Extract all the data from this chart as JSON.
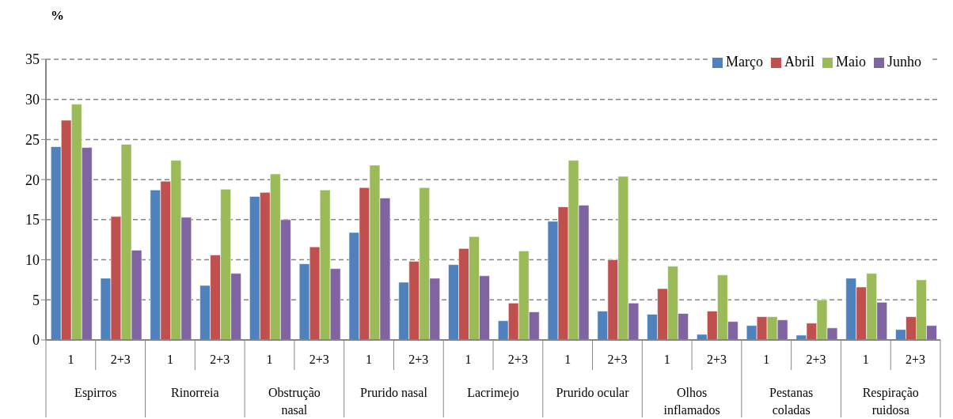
{
  "chart_data": {
    "type": "bar",
    "ylabel": "%",
    "categories": [
      "1",
      "2+3",
      "1",
      "2+3",
      "1",
      "2+3",
      "1",
      "2+3",
      "1",
      "2+3",
      "1",
      "2+3",
      "1",
      "2+3",
      "1",
      "2+3",
      "1",
      "2+3"
    ],
    "annotations": [
      "Espirros",
      "Rinorreia",
      "Obstrução nasal",
      "Prurido nasal",
      "Lacrimejo",
      "Prurido ocular",
      "Olhos inflamados",
      "Pestanas coladas",
      "Respiração ruidosa"
    ],
    "series": [
      {
        "name": "Março",
        "color": "#4f81bd",
        "values": [
          24.1,
          7.7,
          18.7,
          6.8,
          17.9,
          9.5,
          13.4,
          7.2,
          9.4,
          2.4,
          14.8,
          3.6,
          3.2,
          0.7,
          1.8,
          0.6,
          7.7,
          1.3
        ]
      },
      {
        "name": "Abril",
        "color": "#c0504d",
        "values": [
          27.4,
          15.4,
          19.8,
          10.6,
          18.4,
          11.6,
          19.0,
          9.8,
          11.4,
          4.6,
          16.6,
          10.0,
          6.4,
          3.6,
          2.9,
          2.1,
          6.6,
          2.9
        ]
      },
      {
        "name": "Maio",
        "color": "#9bbb59",
        "values": [
          29.4,
          24.4,
          22.4,
          18.8,
          20.7,
          18.7,
          21.8,
          19.0,
          12.9,
          11.1,
          22.4,
          20.4,
          9.2,
          8.1,
          2.9,
          5.0,
          8.3,
          7.5
        ]
      },
      {
        "name": "Junho",
        "color": "#8064a2",
        "values": [
          24.0,
          11.2,
          15.3,
          8.3,
          15.0,
          8.9,
          17.7,
          7.7,
          8.0,
          3.5,
          16.8,
          4.6,
          3.3,
          2.3,
          2.5,
          1.5,
          4.7,
          1.8
        ]
      }
    ],
    "ylim": [
      0,
      35
    ],
    "yticks": [
      0,
      5,
      10,
      15,
      20,
      25,
      30,
      35
    ],
    "grid": "y",
    "legend": "top right"
  }
}
